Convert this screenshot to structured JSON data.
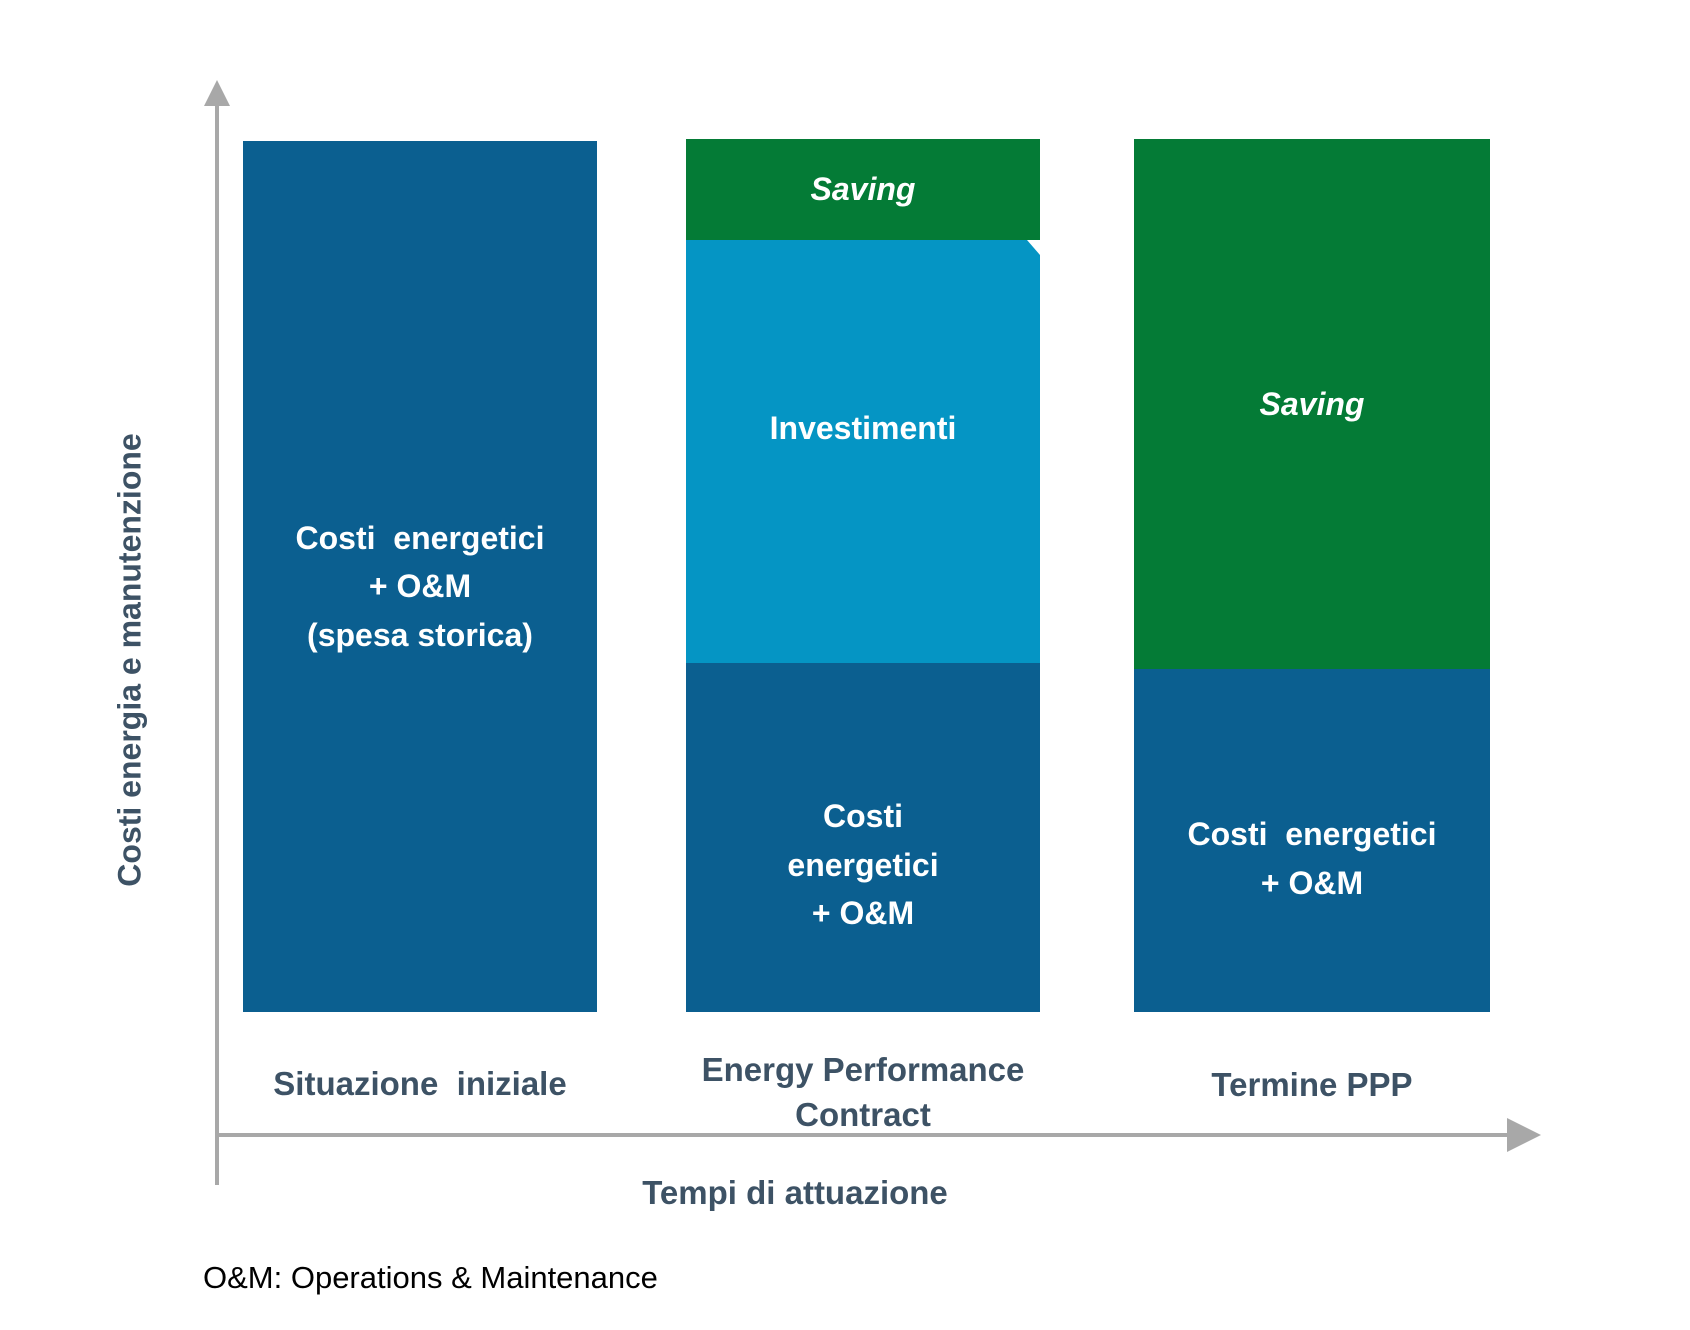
{
  "chart_data": {
    "type": "bar",
    "stacked": true,
    "title": "",
    "xlabel": "Tempi di attuazione",
    "ylabel": "Costi energia e manutenzione",
    "categories": [
      "Situazione  iniziale",
      "Energy Performance Contract",
      "Termine PPP"
    ],
    "series": [
      {
        "name": "Costi energetici + O&M",
        "color": "#0b5f90",
        "values": [
          100,
          40,
          39
        ]
      },
      {
        "name": "Investimenti",
        "color": "#0595c4",
        "values": [
          0,
          48,
          0
        ]
      },
      {
        "name": "Saving",
        "color": "#047b36",
        "values": [
          0,
          12,
          61
        ]
      }
    ],
    "value_unit": "relative height, % of initial-situation bar (estimated, no numeric axis shown)",
    "axis_ticks": "none",
    "grid": false,
    "legend_position": "none",
    "footnote": "O&M: Operations & Maintenance"
  },
  "y_axis_label": "Costi energia e manutenzione",
  "x_axis_label": "Tempi di attuazione",
  "footnote": "O&M: Operations & Maintenance",
  "colors": {
    "dark_blue": "#0b5f90",
    "light_blue": "#0595c4",
    "green": "#047b36",
    "axis_gray": "#a8a8a8",
    "label_slate": "#3d5265",
    "bar_text": "#ffffff",
    "footnote_text": "#000000"
  },
  "bars": [
    {
      "category": "Situazione  iniziale",
      "segments": [
        {
          "name": "costi-energetici-om-spesa-storica",
          "label": "Costi  energetici\n+ O&M\n(spesa storica)"
        }
      ]
    },
    {
      "category": "Energy Performance\nContract",
      "segments": [
        {
          "name": "saving",
          "label": "Saving"
        },
        {
          "name": "investimenti",
          "label": "Investimenti"
        },
        {
          "name": "costi-energetici-om",
          "label": "Costi\nenergetici\n+ O&M"
        }
      ]
    },
    {
      "category": "Termine PPP",
      "segments": [
        {
          "name": "saving",
          "label": "Saving"
        },
        {
          "name": "costi-energetici-om",
          "label": "Costi  energetici\n+ O&M"
        }
      ]
    }
  ]
}
